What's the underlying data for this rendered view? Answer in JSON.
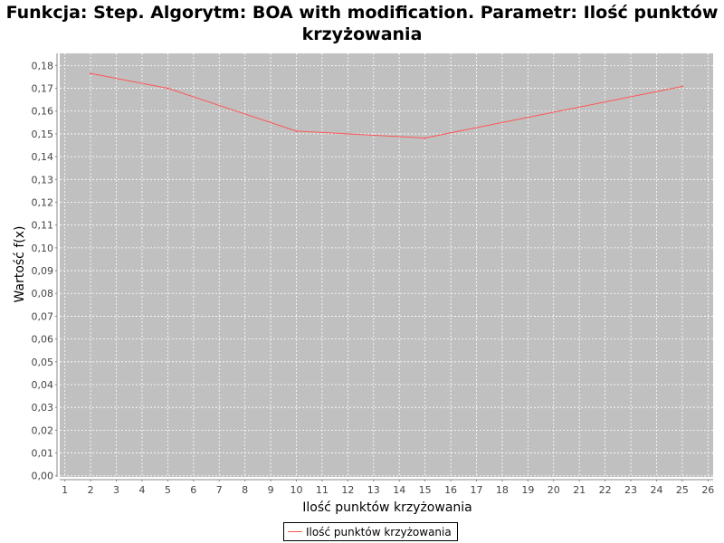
{
  "chart_data": {
    "type": "line",
    "title": "Funkcja: Step. Algorytm: BOA with modification. Parametr: Ilość punktów krzyżowania",
    "xlabel": "Ilość punktów krzyżowania",
    "ylabel": "Wartość f(x)",
    "x_ticks": [
      "1",
      "2",
      "3",
      "4",
      "5",
      "6",
      "7",
      "8",
      "9",
      "10",
      "11",
      "12",
      "13",
      "14",
      "15",
      "16",
      "17",
      "18",
      "19",
      "20",
      "21",
      "22",
      "23",
      "24",
      "25",
      "26"
    ],
    "y_ticks": [
      "0,00",
      "0,01",
      "0,02",
      "0,03",
      "0,04",
      "0,05",
      "0,06",
      "0,07",
      "0,08",
      "0,09",
      "0,10",
      "0,11",
      "0,12",
      "0,13",
      "0,14",
      "0,15",
      "0,16",
      "0,17",
      "0,18"
    ],
    "xlim": [
      1,
      26
    ],
    "ylim": [
      0,
      0.18
    ],
    "grid": true,
    "legend_position": "bottom-center",
    "series": [
      {
        "name": "Ilość punktów krzyżowania",
        "color": "#ff5555",
        "x": [
          2,
          5,
          10,
          15,
          25
        ],
        "y": [
          0.1765,
          0.17,
          0.1512,
          0.1482,
          0.1708
        ]
      }
    ]
  }
}
